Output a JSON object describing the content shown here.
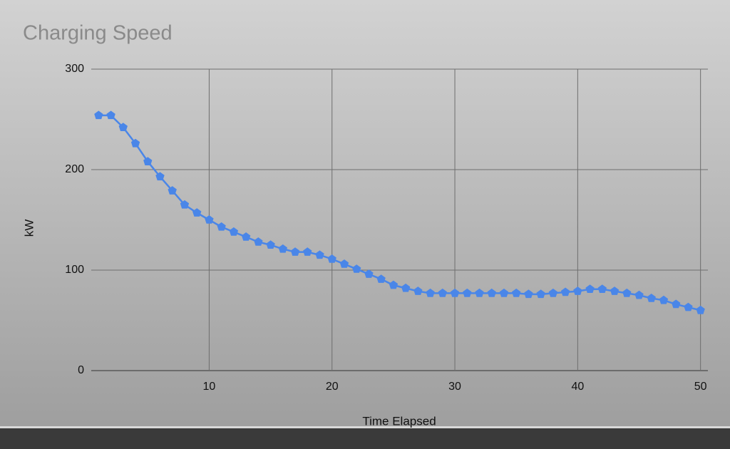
{
  "chart_data": {
    "type": "line",
    "title": "Charging Speed",
    "x_label": "Time Elapsed",
    "y_label": "kW",
    "x": [
      1,
      2,
      3,
      4,
      5,
      6,
      7,
      8,
      9,
      10,
      11,
      12,
      13,
      14,
      15,
      16,
      17,
      18,
      19,
      20,
      21,
      22,
      23,
      24,
      25,
      26,
      27,
      28,
      29,
      30,
      31,
      32,
      33,
      34,
      35,
      36,
      37,
      38,
      39,
      40,
      41,
      42,
      43,
      44,
      45,
      46,
      47,
      48,
      49,
      50
    ],
    "series": [
      {
        "name": "kW",
        "color": "#4a86e8",
        "values": [
          254,
          254,
          242,
          226,
          208,
          193,
          179,
          165,
          157,
          150,
          143,
          138,
          133,
          128,
          125,
          121,
          118,
          118,
          115,
          111,
          106,
          101,
          96,
          91,
          85,
          82,
          79,
          77,
          77,
          77,
          77,
          77,
          77,
          77,
          77,
          76,
          76,
          77,
          78,
          79,
          81,
          81,
          79,
          77,
          75,
          72,
          70,
          66,
          63,
          60
        ]
      }
    ],
    "xlim": [
      0.4,
      50.6
    ],
    "ylim": [
      0,
      300
    ],
    "xticks": [
      10,
      20,
      30,
      40,
      50
    ],
    "yticks": [
      0,
      100,
      200,
      300
    ],
    "grid": true
  }
}
